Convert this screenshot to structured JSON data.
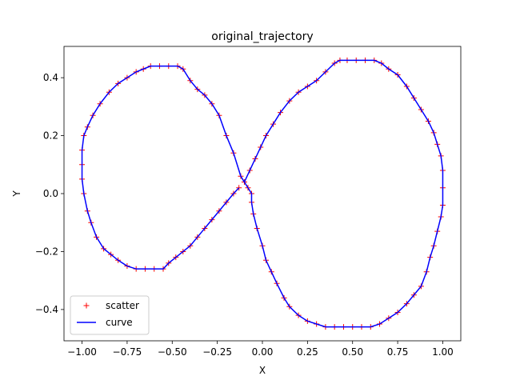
{
  "chart_data": {
    "type": "line",
    "title": "original_trajectory",
    "x_label": "X",
    "y_label": "Y",
    "x": [
      -0.1,
      -0.07,
      -0.04,
      -0.01,
      0.02,
      0.06,
      0.1,
      0.15,
      0.2,
      0.25,
      0.3,
      0.35,
      0.4,
      0.43,
      0.47,
      0.52,
      0.57,
      0.62,
      0.66,
      0.7,
      0.75,
      0.8,
      0.84,
      0.88,
      0.92,
      0.95,
      0.97,
      0.99,
      1.0,
      1.0,
      1.0,
      0.99,
      0.97,
      0.95,
      0.93,
      0.91,
      0.88,
      0.84,
      0.8,
      0.75,
      0.7,
      0.65,
      0.6,
      0.55,
      0.5,
      0.45,
      0.4,
      0.35,
      0.3,
      0.25,
      0.2,
      0.15,
      0.12,
      0.08,
      0.05,
      0.02,
      0.0,
      -0.03,
      -0.05,
      -0.06,
      -0.06,
      -0.08,
      -0.12,
      -0.16,
      -0.2,
      -0.24,
      -0.28,
      -0.32,
      -0.36,
      -0.4,
      -0.44,
      -0.47,
      -0.52,
      -0.57,
      -0.62,
      -0.66,
      -0.7,
      -0.75,
      -0.8,
      -0.85,
      -0.9,
      -0.94,
      -0.97,
      -0.99,
      -1.0,
      -1.0,
      -1.0,
      -0.99,
      -0.97,
      -0.95,
      -0.92,
      -0.88,
      -0.84,
      -0.8,
      -0.75,
      -0.7,
      -0.65,
      -0.6,
      -0.55,
      -0.52,
      -0.48,
      -0.44,
      -0.4,
      -0.36,
      -0.32,
      -0.28,
      -0.24,
      -0.2,
      -0.16,
      -0.13
    ],
    "series": [
      {
        "name": "scatter",
        "color": "#ff0000",
        "marker": "+",
        "values": [
          0.04,
          0.08,
          0.12,
          0.16,
          0.2,
          0.24,
          0.28,
          0.32,
          0.35,
          0.37,
          0.39,
          0.42,
          0.45,
          0.46,
          0.46,
          0.46,
          0.46,
          0.46,
          0.45,
          0.43,
          0.41,
          0.37,
          0.33,
          0.29,
          0.25,
          0.21,
          0.17,
          0.13,
          0.08,
          0.02,
          -0.04,
          -0.08,
          -0.13,
          -0.18,
          -0.22,
          -0.27,
          -0.32,
          -0.35,
          -0.38,
          -0.41,
          -0.43,
          -0.45,
          -0.46,
          -0.46,
          -0.46,
          -0.46,
          -0.46,
          -0.46,
          -0.45,
          -0.44,
          -0.42,
          -0.39,
          -0.36,
          -0.31,
          -0.27,
          -0.23,
          -0.18,
          -0.12,
          -0.07,
          -0.03,
          0.0,
          0.02,
          0.06,
          0.14,
          0.2,
          0.27,
          0.31,
          0.34,
          0.36,
          0.39,
          0.43,
          0.44,
          0.44,
          0.44,
          0.44,
          0.43,
          0.42,
          0.4,
          0.38,
          0.35,
          0.31,
          0.27,
          0.23,
          0.2,
          0.15,
          0.1,
          0.05,
          0.0,
          -0.06,
          -0.1,
          -0.15,
          -0.19,
          -0.21,
          -0.23,
          -0.25,
          -0.26,
          -0.26,
          -0.26,
          -0.26,
          -0.24,
          -0.22,
          -0.2,
          -0.18,
          -0.15,
          -0.12,
          -0.09,
          -0.06,
          -0.03,
          0.0,
          0.02
        ]
      },
      {
        "name": "curve",
        "color": "#0000ff",
        "values": [
          0.04,
          0.08,
          0.12,
          0.16,
          0.2,
          0.24,
          0.28,
          0.32,
          0.35,
          0.37,
          0.39,
          0.42,
          0.45,
          0.46,
          0.46,
          0.46,
          0.46,
          0.46,
          0.45,
          0.43,
          0.41,
          0.37,
          0.33,
          0.29,
          0.25,
          0.21,
          0.17,
          0.13,
          0.08,
          0.02,
          -0.04,
          -0.08,
          -0.13,
          -0.18,
          -0.22,
          -0.27,
          -0.32,
          -0.35,
          -0.38,
          -0.41,
          -0.43,
          -0.45,
          -0.46,
          -0.46,
          -0.46,
          -0.46,
          -0.46,
          -0.46,
          -0.45,
          -0.44,
          -0.42,
          -0.39,
          -0.36,
          -0.31,
          -0.27,
          -0.23,
          -0.18,
          -0.12,
          -0.07,
          -0.03,
          0.0,
          0.02,
          0.06,
          0.14,
          0.2,
          0.27,
          0.31,
          0.34,
          0.36,
          0.39,
          0.43,
          0.44,
          0.44,
          0.44,
          0.44,
          0.43,
          0.42,
          0.4,
          0.38,
          0.35,
          0.31,
          0.27,
          0.23,
          0.2,
          0.15,
          0.1,
          0.05,
          0.0,
          -0.06,
          -0.1,
          -0.15,
          -0.19,
          -0.21,
          -0.23,
          -0.25,
          -0.26,
          -0.26,
          -0.26,
          -0.26,
          -0.24,
          -0.22,
          -0.2,
          -0.18,
          -0.15,
          -0.12,
          -0.09,
          -0.06,
          -0.03,
          0.0,
          0.02
        ]
      }
    ],
    "xlim": [
      -1.1,
      1.1
    ],
    "ylim": [
      -0.508,
      0.508
    ],
    "xticks": [
      {
        "value": -1,
        "label": "−1.00"
      },
      {
        "value": -0.75,
        "label": "−0.75"
      },
      {
        "value": -0.5,
        "label": "−0.50"
      },
      {
        "value": -0.25,
        "label": "−0.25"
      },
      {
        "value": 0,
        "label": "0.00"
      },
      0.25,
      {
        "value": 0.5,
        "label": "0.50"
      },
      0.75,
      {
        "value": 1,
        "label": "1.00"
      }
    ],
    "yticks": [
      {
        "value": -0.4,
        "label": "−0.4"
      },
      {
        "value": -0.2,
        "label": "−0.2"
      },
      {
        "value": 0,
        "label": "0.0"
      },
      0.2,
      0.4
    ],
    "legend": "lower left",
    "grid": false
  }
}
